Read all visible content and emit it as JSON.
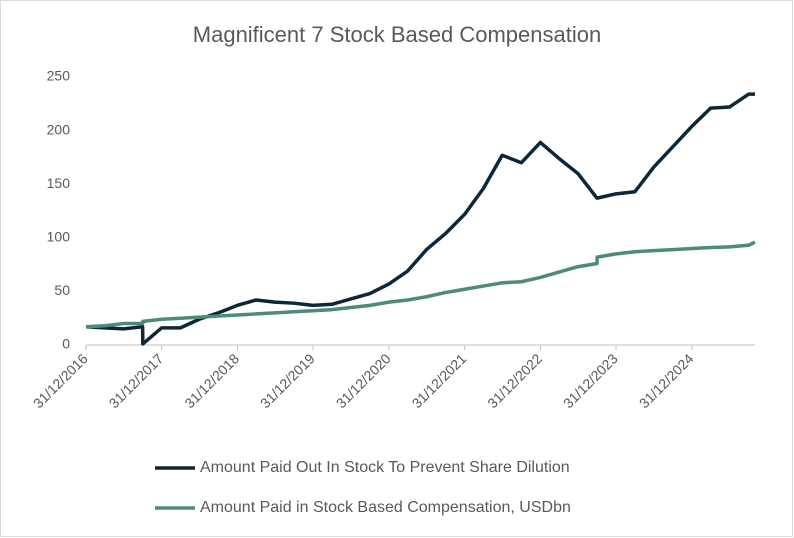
{
  "chart_data": {
    "type": "line",
    "title": "Magnificent 7 Stock Based Compensation",
    "x": [
      "31/12/2016",
      "31/03/2017",
      "30/06/2017",
      "30/09/2017",
      "01/10/2017",
      "31/12/2017",
      "31/03/2018",
      "30/06/2018",
      "30/09/2018",
      "31/12/2018",
      "31/03/2019",
      "30/06/2019",
      "30/09/2019",
      "31/12/2019",
      "31/03/2020",
      "30/06/2020",
      "30/09/2020",
      "31/12/2020",
      "31/03/2021",
      "30/06/2021",
      "30/09/2021",
      "31/12/2021",
      "31/03/2022",
      "30/06/2022",
      "30/09/2022",
      "31/12/2022",
      "31/03/2023",
      "30/06/2023",
      "30/09/2023",
      "01/10/2023",
      "31/12/2023",
      "31/03/2024",
      "30/06/2024",
      "30/09/2024",
      "31/12/2024",
      "31/03/2025",
      "30/06/2025",
      "30/09/2025",
      "31/10/2025"
    ],
    "series": [
      {
        "name": "Amount Paid Out In Stock To Prevent Share Dilution",
        "color": "#0e2738",
        "values": [
          17,
          16,
          15,
          17,
          1,
          16,
          16,
          24,
          30,
          37,
          42,
          40,
          39,
          37,
          38,
          43,
          48,
          57,
          69,
          89,
          104,
          122,
          146,
          177,
          170,
          189,
          174,
          160,
          137,
          137,
          141,
          143,
          166,
          185,
          204,
          221,
          222,
          234,
          234
        ]
      },
      {
        "name": "Amount Paid in Stock Based Compensation, USDbn",
        "color": "#4e8a78",
        "values": [
          17,
          18,
          20,
          20,
          22,
          24,
          25,
          26,
          27,
          28,
          29,
          30,
          31,
          32,
          33,
          35,
          37,
          40,
          42,
          45,
          49,
          52,
          55,
          58,
          59,
          63,
          68,
          73,
          76,
          82,
          85,
          87,
          88,
          89,
          90,
          91,
          91.5,
          93,
          96
        ]
      }
    ],
    "xlim": [
      "31/12/2016",
      "31/10/2025"
    ],
    "xticks": [
      "31/12/2016",
      "31/12/2017",
      "31/12/2018",
      "31/12/2019",
      "31/12/2020",
      "31/12/2021",
      "31/12/2022",
      "31/12/2023",
      "31/12/2024"
    ],
    "ylim": [
      0,
      250
    ],
    "yticks": [
      0,
      50,
      100,
      150,
      200,
      250
    ],
    "grid": false,
    "legend": "bottom"
  }
}
